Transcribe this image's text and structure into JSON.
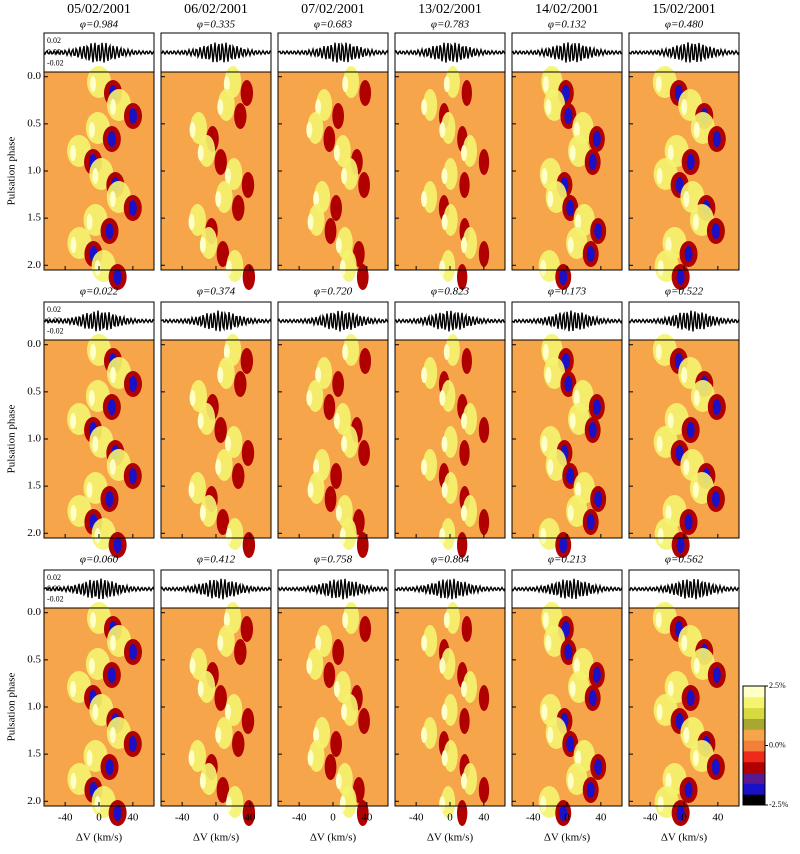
{
  "figure": {
    "dates": [
      "05/02/2001",
      "06/02/2001",
      "07/02/2001",
      "13/02/2001",
      "14/02/2001",
      "15/02/2001"
    ],
    "rows": [
      {
        "phase_labels": [
          "φ=0.984",
          "φ=0.335",
          "φ=0.683",
          "φ=0.783",
          "φ=0.132",
          "φ=0.480"
        ]
      },
      {
        "phase_labels": [
          "φ=0.022",
          "φ=0.374",
          "φ=0.720",
          "φ=0.823",
          "φ=0.173",
          "φ=0.522"
        ]
      },
      {
        "phase_labels": [
          "φ=0.060",
          "φ=0.412",
          "φ=0.758",
          "φ=0.864",
          "φ=0.213",
          "φ=0.562"
        ]
      }
    ],
    "y_axis_label": "Pulsation phase",
    "x_axis_label": "ΔV (km/s)",
    "phase_lim": [
      -0.05,
      2.05
    ],
    "phase_ticks": [
      {
        "value": 0,
        "label": "0.0"
      },
      {
        "value": 0.5,
        "label": "0.5"
      },
      {
        "value": 1,
        "label": "1.0"
      },
      {
        "value": 1.5,
        "label": "1.5"
      },
      {
        "value": 2,
        "label": "2.0"
      }
    ],
    "velocity_lim": [
      -65,
      65
    ],
    "velocity_ticks": [
      -40,
      0,
      40
    ],
    "residual_lim": [
      -0.035,
      0.035
    ],
    "residual_ticks": [
      {
        "value": 0.02,
        "label": "0.02"
      },
      {
        "value": 0,
        "label": "0.00"
      },
      {
        "value": -0.02,
        "label": "-0.02"
      }
    ],
    "colorbar": {
      "lim": [
        -2.5,
        2.5
      ],
      "ticks": [
        {
          "value": 2.5,
          "label": "2.5%"
        },
        {
          "value": 0,
          "label": "0.0%"
        },
        {
          "value": -2.5,
          "label": "-2.5%"
        }
      ],
      "colors": [
        "#000000",
        "#1a10c8",
        "#5a1890",
        "#b00000",
        "#ee2a1a",
        "#f2803a",
        "#f7a54a",
        "#a8a830",
        "#d8d840",
        "#f4f470",
        "#ffffc8"
      ]
    }
  }
}
